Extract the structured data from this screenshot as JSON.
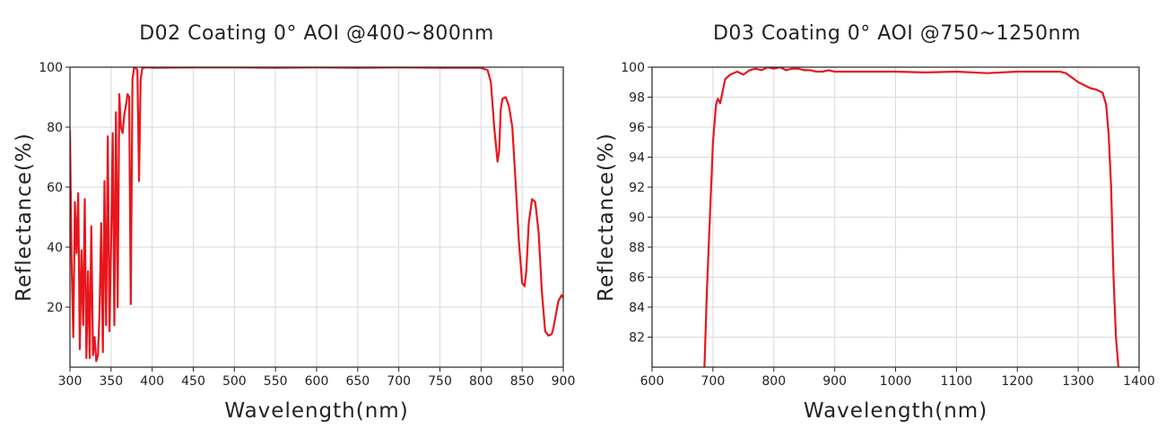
{
  "chart_data": [
    {
      "type": "line",
      "title": "D02 Coating 0° AOI @400~800nm",
      "xlabel": "Wavelength(nm)",
      "ylabel": "Reflectance(%)",
      "xlim": [
        300,
        900
      ],
      "ylim": [
        0,
        100
      ],
      "xticks": [
        300,
        350,
        400,
        450,
        500,
        550,
        600,
        650,
        700,
        750,
        800,
        850,
        900
      ],
      "yticks": [
        20,
        40,
        60,
        80,
        100
      ],
      "grid": true,
      "line_color": "#e8161c",
      "series": [
        {
          "x": [
            300,
            302,
            304,
            306,
            308,
            310,
            312,
            314,
            316,
            318,
            320,
            322,
            324,
            326,
            328,
            330,
            332,
            334,
            336,
            338,
            340,
            342,
            344,
            346,
            348,
            350,
            352,
            354,
            356,
            358,
            360,
            362,
            364,
            366,
            368,
            370,
            372,
            374,
            376,
            378,
            380,
            382,
            384,
            386,
            388,
            390,
            392,
            394,
            396,
            400,
            450,
            500,
            550,
            600,
            650,
            700,
            750,
            790,
            800,
            808,
            812,
            816,
            820,
            822,
            824,
            826,
            830,
            834,
            838,
            842,
            846,
            850,
            853,
            855,
            858,
            862,
            866,
            870,
            874,
            878,
            882,
            886,
            888,
            890,
            894,
            898,
            900
          ],
          "y": [
            79,
            35,
            10,
            55,
            38,
            58,
            6,
            39,
            14,
            56,
            3,
            32,
            3,
            47,
            4,
            10,
            2,
            4,
            18,
            48,
            5,
            62,
            14,
            77,
            12,
            40,
            78,
            14,
            85,
            20,
            91,
            80,
            78,
            84,
            87,
            91,
            90,
            21,
            96,
            99.8,
            99.8,
            99,
            62,
            96,
            99.7,
            99.8,
            99.9,
            99.9,
            99.9,
            99.8,
            99.9,
            99.9,
            99.8,
            99.9,
            99.8,
            99.9,
            99.8,
            99.8,
            99.8,
            99,
            95,
            80,
            68.5,
            72,
            86,
            89.5,
            90,
            87,
            80,
            62,
            42,
            28,
            27,
            32,
            48,
            56,
            55,
            45,
            25,
            12,
            10.5,
            11,
            13,
            16,
            22,
            24,
            23
          ]
        }
      ]
    },
    {
      "type": "line",
      "title": "D03 Coating 0° AOI @750~1250nm",
      "xlabel": "Wavelength(nm)",
      "ylabel": "Reflectance(%)",
      "xlim": [
        600,
        1400
      ],
      "ylim": [
        80,
        100
      ],
      "xticks": [
        600,
        700,
        800,
        900,
        1000,
        1100,
        1200,
        1300,
        1400
      ],
      "yticks": [
        82,
        84,
        86,
        88,
        90,
        92,
        94,
        96,
        98,
        100
      ],
      "grid": true,
      "line_color": "#e8161c",
      "series": [
        {
          "x": [
            686,
            690,
            695,
            700,
            705,
            708,
            712,
            716,
            720,
            728,
            740,
            750,
            760,
            770,
            780,
            790,
            800,
            810,
            820,
            830,
            840,
            850,
            860,
            870,
            880,
            890,
            900,
            950,
            1000,
            1050,
            1100,
            1150,
            1200,
            1250,
            1270,
            1280,
            1290,
            1300,
            1310,
            1320,
            1330,
            1340,
            1346,
            1350,
            1354,
            1358,
            1362,
            1366
          ],
          "y": [
            80,
            85,
            90,
            95,
            97.5,
            97.9,
            97.6,
            98.4,
            99.2,
            99.5,
            99.7,
            99.5,
            99.8,
            99.9,
            99.8,
            100,
            99.9,
            100,
            99.8,
            99.9,
            99.9,
            99.8,
            99.8,
            99.7,
            99.7,
            99.8,
            99.7,
            99.7,
            99.7,
            99.65,
            99.7,
            99.6,
            99.7,
            99.7,
            99.7,
            99.6,
            99.3,
            99.0,
            98.8,
            98.6,
            98.5,
            98.3,
            97.5,
            95.5,
            92,
            86,
            82,
            80
          ]
        }
      ]
    }
  ]
}
